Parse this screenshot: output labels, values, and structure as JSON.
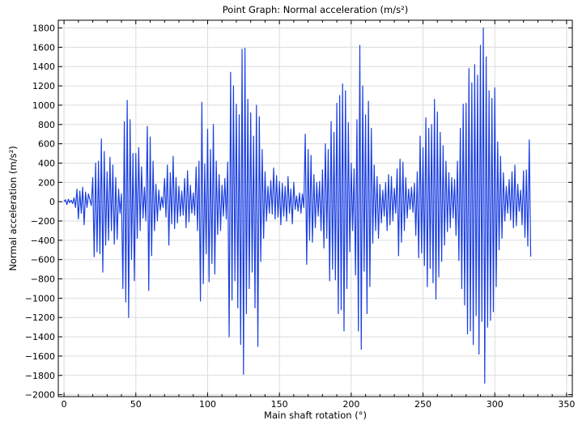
{
  "chart_data": {
    "type": "line",
    "title": "Point Graph: Normal acceleration (m/s²)",
    "xlabel": "Main shaft rotation (°)",
    "ylabel": "Normal acceleration (m/s²)",
    "xlim": [
      -4,
      354
    ],
    "ylim": [
      -2020,
      1880
    ],
    "x_ticks": [
      0,
      50,
      100,
      150,
      200,
      250,
      300,
      350
    ],
    "y_ticks": [
      -2000,
      -1800,
      -1600,
      -1400,
      -1200,
      -1000,
      -800,
      -600,
      -400,
      -200,
      0,
      200,
      400,
      600,
      800,
      1000,
      1200,
      1400,
      1600,
      1800
    ],
    "grid": true,
    "series": [
      {
        "color": "#1a3fe0",
        "x_start": 0,
        "x_step": 1,
        "values": [
          0,
          20,
          -30,
          25,
          -10,
          15,
          -20,
          40,
          -60,
          130,
          -180,
          110,
          -120,
          150,
          -240,
          100,
          -60,
          80,
          20,
          -40,
          250,
          -570,
          400,
          -520,
          420,
          -540,
          650,
          -730,
          520,
          -450,
          310,
          -400,
          460,
          -300,
          380,
          -440,
          250,
          -390,
          130,
          -120,
          80,
          -900,
          830,
          -1040,
          1050,
          -1200,
          850,
          -600,
          500,
          -820,
          500,
          -380,
          560,
          -300,
          360,
          -170,
          150,
          -200,
          780,
          -920,
          670,
          -560,
          420,
          -300,
          180,
          -200,
          120,
          -90,
          50,
          -60,
          240,
          -160,
          380,
          -450,
          300,
          -230,
          470,
          -280,
          250,
          -220,
          160,
          -150,
          110,
          -140,
          240,
          -270,
          320,
          -210,
          170,
          -120,
          90,
          -140,
          360,
          -300,
          420,
          -1030,
          1030,
          -850,
          390,
          -540,
          750,
          -830,
          540,
          -640,
          800,
          -750,
          420,
          -340,
          280,
          -300,
          170,
          -150,
          240,
          -180,
          410,
          -1400,
          1340,
          -1020,
          1200,
          -820,
          1010,
          -1100,
          900,
          -1480,
          1580,
          -1790,
          1590,
          -1160,
          1060,
          -900,
          920,
          -730,
          680,
          -1100,
          1000,
          -1500,
          880,
          -620,
          540,
          -380,
          310,
          -200,
          160,
          -120,
          220,
          -130,
          350,
          -180,
          270,
          -160,
          210,
          -240,
          190,
          -150,
          160,
          -200,
          260,
          -120,
          130,
          -230,
          200,
          -80,
          60,
          -100,
          90,
          -120,
          80,
          -60,
          700,
          -650,
          540,
          -400,
          480,
          -420,
          280,
          -270,
          200,
          -150,
          210,
          -300,
          330,
          -480,
          600,
          -380,
          540,
          -820,
          830,
          -700,
          720,
          -810,
          1020,
          -1160,
          1100,
          -1120,
          1220,
          -1340,
          1150,
          -900,
          820,
          -520,
          400,
          -300,
          340,
          -760,
          850,
          -1340,
          1620,
          -1530,
          1200,
          -720,
          900,
          -1160,
          1040,
          -880,
          760,
          -430,
          380,
          -300,
          260,
          -380,
          180,
          -220,
          120,
          -150,
          200,
          -300,
          280,
          -240,
          260,
          -200,
          140,
          -120,
          340,
          -560,
          440,
          -420,
          410,
          -300,
          250,
          -170,
          130,
          -80,
          150,
          -110,
          190,
          -350,
          310,
          -580,
          680,
          -530,
          560,
          -660,
          870,
          -880,
          760,
          -690,
          800,
          -840,
          1060,
          -1010,
          930,
          -780,
          720,
          -620,
          580,
          -450,
          420,
          -310,
          300,
          -270,
          250,
          -170,
          230,
          -350,
          420,
          -610,
          760,
          -900,
          1010,
          -1070,
          1020,
          -1370,
          1380,
          -1340,
          1230,
          -1480,
          1420,
          -1180,
          1310,
          -1580,
          1620,
          -1240,
          1800,
          -1880,
          1500,
          -1300,
          1150,
          -1230,
          1070,
          -1140,
          1180,
          -880,
          620,
          -500,
          470,
          -380,
          300,
          -200,
          160,
          -120,
          230,
          -190,
          310,
          -270,
          380,
          -250,
          180,
          -100,
          120,
          -240,
          320,
          -370,
          330,
          -460,
          640,
          -570
        ]
      }
    ]
  }
}
